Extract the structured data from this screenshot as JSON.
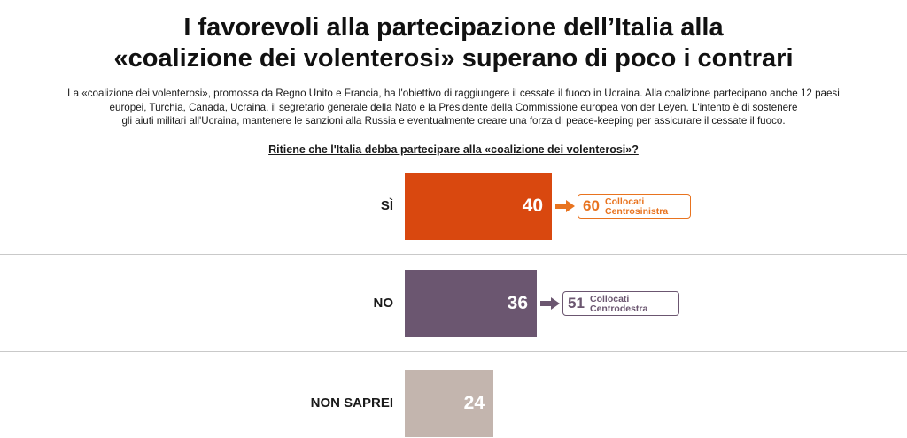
{
  "title": {
    "line1": "I favorevoli alla partecipazione dell’Italia alla",
    "line2": "«coalizione dei volenterosi» superano di poco i contrari"
  },
  "intro": {
    "line1": "La «coalizione dei volenterosi», promossa da Regno Unito e Francia, ha l'obiettivo di raggiungere il cessate il fuoco in Ucraina. Alla coalizione partecipano anche 12 paesi",
    "line2": "europei, Turchia, Canada, Ucraina, il segretario generale della Nato e la Presidente della Commissione europea von  der Leyen. L'intento è di sostenere",
    "line3": "gli aiuti militari all'Ucraina, mantenere le sanzioni alla Russia e eventualmente creare una forza di peace-keeping per assicurare il cessate il fuoco."
  },
  "question": "Ritiene che l'Italia debba partecipare alla «coalizione dei volenterosi»?",
  "colors": {
    "si": "#d9480f",
    "no": "#6b5670",
    "non_saprei": "#c3b5ae",
    "si_callout": "#e8731f",
    "no_callout": "#6b5670"
  },
  "callouts": [
    {
      "value": "60",
      "line1": "Collocati",
      "line2": "Centrosinistra"
    },
    {
      "value": "51",
      "line1": "Collocati",
      "line2": "Centrodestra"
    }
  ],
  "chart_data": {
    "type": "bar",
    "orientation": "horizontal",
    "title": "I favorevoli alla partecipazione dell’Italia alla «coalizione dei volenterosi» superano di poco i contrari",
    "categories": [
      "SÌ",
      "NO",
      "NON SAPREI"
    ],
    "values": [
      40,
      36,
      24
    ],
    "value_labels": [
      "40",
      "36",
      "24"
    ],
    "annotations": [
      {
        "category": "SÌ",
        "value": 60,
        "text": "Collocati Centrosinistra"
      },
      {
        "category": "NO",
        "value": 51,
        "text": "Collocati Centrodestra"
      }
    ],
    "grid": false,
    "legend": "none"
  }
}
